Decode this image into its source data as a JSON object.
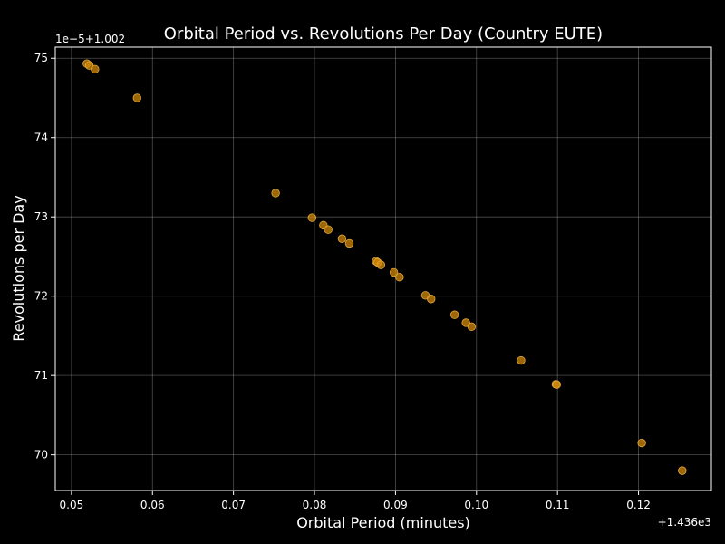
{
  "chart_data": {
    "type": "scatter",
    "title": "Orbital Period vs. Revolutions Per Day (Country EUTE)",
    "xlabel": "Orbital Period (minutes)",
    "ylabel": "Revolutions per Day",
    "x_offset_label": "+1.436e3",
    "y_offset_label": "1e−5+1.002",
    "x_ticks": [
      "0.05",
      "0.06",
      "0.07",
      "0.08",
      "0.09",
      "0.10",
      "0.11",
      "0.12"
    ],
    "y_ticks": [
      "70",
      "71",
      "72",
      "73",
      "74",
      "75"
    ],
    "xlim": [
      1436.048,
      1436.129
    ],
    "ylim": [
      1.0026955,
      1.0027514
    ],
    "grid": true,
    "marker_color": "#d18a0a",
    "marker_edge_color": "#e3a63a",
    "background": "#000000",
    "points": [
      {
        "x": 1436.0519,
        "y": 1.00274932
      },
      {
        "x": 1436.0522,
        "y": 1.0027491
      },
      {
        "x": 1436.0529,
        "y": 1.00274862
      },
      {
        "x": 1436.0581,
        "y": 1.002745
      },
      {
        "x": 1436.0752,
        "y": 1.002733
      },
      {
        "x": 1436.0797,
        "y": 1.0027299
      },
      {
        "x": 1436.0811,
        "y": 1.00272895
      },
      {
        "x": 1436.0817,
        "y": 1.0027284
      },
      {
        "x": 1436.0834,
        "y": 1.00272725
      },
      {
        "x": 1436.0843,
        "y": 1.00272665
      },
      {
        "x": 1436.0876,
        "y": 1.0027244
      },
      {
        "x": 1436.0878,
        "y": 1.00272425
      },
      {
        "x": 1436.0882,
        "y": 1.00272395
      },
      {
        "x": 1436.0898,
        "y": 1.002723
      },
      {
        "x": 1436.0905,
        "y": 1.0027224
      },
      {
        "x": 1436.0937,
        "y": 1.0027201
      },
      {
        "x": 1436.0944,
        "y": 1.00271965
      },
      {
        "x": 1436.0973,
        "y": 1.00271765
      },
      {
        "x": 1436.0987,
        "y": 1.00271665
      },
      {
        "x": 1436.0994,
        "y": 1.00271615
      },
      {
        "x": 1436.1055,
        "y": 1.0027119
      },
      {
        "x": 1436.1098,
        "y": 1.0027089
      },
      {
        "x": 1436.1099,
        "y": 1.00270885
      },
      {
        "x": 1436.1204,
        "y": 1.0027015
      },
      {
        "x": 1436.1254,
        "y": 1.002698
      }
    ]
  }
}
